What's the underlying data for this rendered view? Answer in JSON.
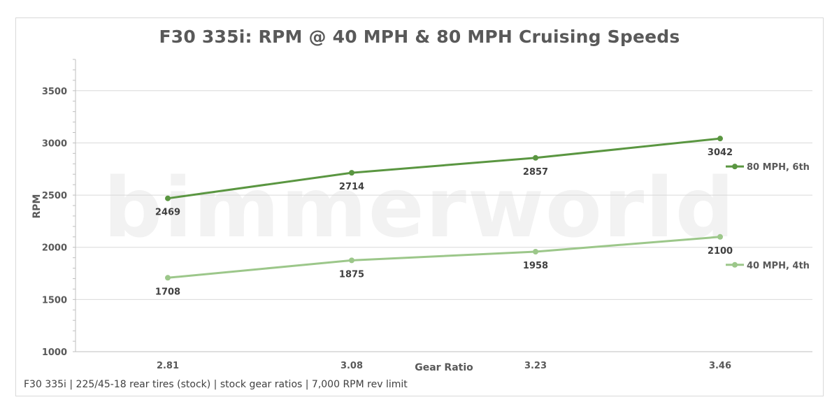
{
  "chart_data": {
    "type": "line",
    "title": "F30 335i: RPM @ 40 MPH & 80 MPH Cruising Speeds",
    "xlabel": "Gear Ratio",
    "ylabel": "RPM",
    "categories": [
      "2.81",
      "3.08",
      "3.23",
      "3.46"
    ],
    "ylim": [
      1000,
      3800
    ],
    "yticks": [
      1000,
      1500,
      2000,
      2500,
      3000,
      3500
    ],
    "grid": true,
    "legend_placement": "right",
    "series": [
      {
        "name": "80 MPH, 6th",
        "values": [
          2469,
          2714,
          2857,
          3042
        ],
        "color": "#5a9641",
        "label_position": "below"
      },
      {
        "name": "40 MPH, 4th",
        "values": [
          1708,
          1875,
          1958,
          2100
        ],
        "color": "#9cc78a",
        "label_position": "below"
      }
    ],
    "watermark": "bimmerworld",
    "footnote": "F30 335i  |  225/45-18 rear tires (stock)  |  stock gear ratios  |  7,000 RPM rev limit"
  }
}
